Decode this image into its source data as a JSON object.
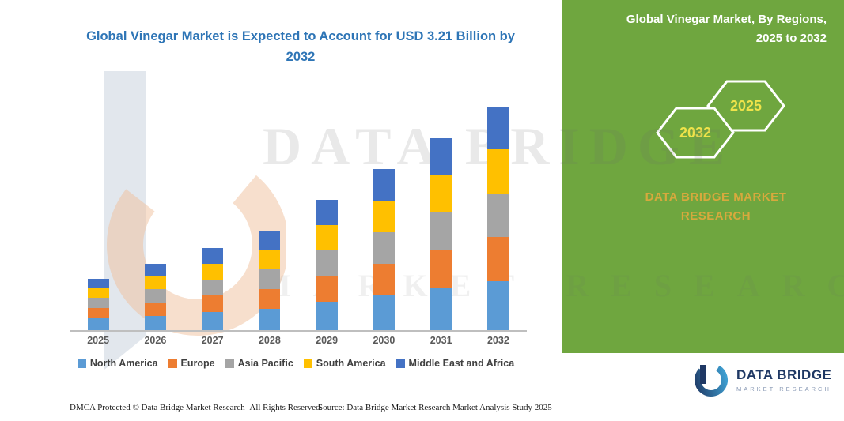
{
  "theme": {
    "green_bg": "#6FA63F",
    "title_blue": "#2E75B6",
    "hexagon_yellow": "#EFE34A",
    "brand_gold": "#D7A93D",
    "logo_navy": "#1F3864"
  },
  "main_title": "Global Vinegar Market is Expected to Account for USD 3.21 Billion by 2032",
  "side_panel": {
    "title_line1": "Global Vinegar Market, By Regions,",
    "title_line2": "2025 to 2032",
    "hexagons": [
      "2032",
      "2025"
    ],
    "brand_text": "DATA BRIDGE MARKET RESEARCH"
  },
  "watermark": {
    "line1": "DATA BRIDGE",
    "line2": "MARKET RESEARCH"
  },
  "chart_data": {
    "type": "bar",
    "stacked": true,
    "unit": "USD Billion",
    "title": "Global Vinegar Market is Expected to Account for USD 3.21 Billion by 2032",
    "categories": [
      "2025",
      "2026",
      "2027",
      "2028",
      "2029",
      "2030",
      "2031",
      "2032"
    ],
    "series": [
      {
        "name": "North America",
        "color": "#5B9BD5",
        "values": [
          0.17,
          0.21,
          0.26,
          0.31,
          0.41,
          0.5,
          0.6,
          0.7
        ]
      },
      {
        "name": "Europe",
        "color": "#ED7D31",
        "values": [
          0.15,
          0.19,
          0.24,
          0.28,
          0.37,
          0.46,
          0.55,
          0.64
        ]
      },
      {
        "name": "Asia Pacific",
        "color": "#A5A5A5",
        "values": [
          0.15,
          0.19,
          0.23,
          0.28,
          0.36,
          0.45,
          0.54,
          0.63
        ]
      },
      {
        "name": "South America",
        "color": "#FFC000",
        "values": [
          0.14,
          0.18,
          0.23,
          0.28,
          0.36,
          0.46,
          0.55,
          0.64
        ]
      },
      {
        "name": "Middle East and Africa",
        "color": "#4472C4",
        "values": [
          0.14,
          0.18,
          0.23,
          0.27,
          0.36,
          0.45,
          0.52,
          0.6
        ]
      }
    ],
    "totals": [
      0.75,
      0.95,
      1.19,
      1.42,
      1.86,
      2.32,
      2.76,
      3.21
    ],
    "ylim": [
      0,
      3.3
    ],
    "grid": false,
    "legend_position": "bottom"
  },
  "footer": {
    "left": "DMCA Protected © Data Bridge Market Research-  All Rights Reserved.",
    "right": "Source: Data Bridge Market Research  Market Analysis Study 2025"
  },
  "logo": {
    "name": "DATA BRIDGE",
    "tagline": "MARKET RESEARCH"
  }
}
